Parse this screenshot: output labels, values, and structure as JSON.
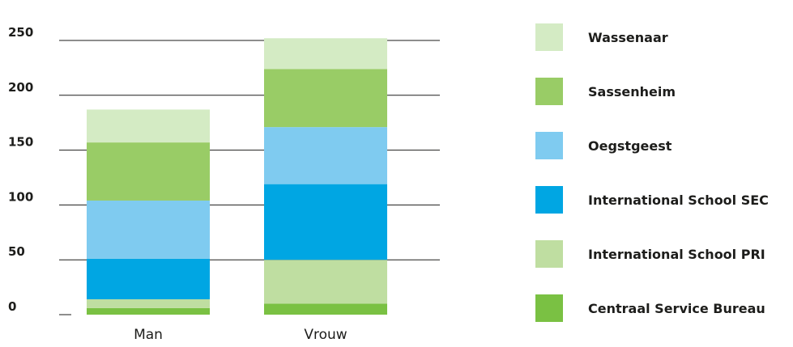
{
  "chart_data": {
    "type": "bar",
    "stacked": true,
    "categories": [
      "Man",
      "Vrouw"
    ],
    "ylim": [
      0,
      250
    ],
    "yticks": [
      "0",
      "50",
      "100",
      "150",
      "200",
      "250"
    ],
    "grid": true,
    "legend_position": "right",
    "series": [
      {
        "name": "Centraal Service Bureau",
        "color": "#7ac143",
        "values": [
          6,
          10
        ]
      },
      {
        "name": "International School PRI",
        "color": "#bfdea1",
        "values": [
          8,
          40
        ]
      },
      {
        "name": "International School SEC",
        "color": "#00a6e3",
        "values": [
          37,
          69
        ]
      },
      {
        "name": "Oegstgeest",
        "color": "#7fcbf0",
        "values": [
          53,
          52
        ]
      },
      {
        "name": "Sassenheim",
        "color": "#99cc66",
        "values": [
          53,
          53
        ]
      },
      {
        "name": "Wassenaar",
        "color": "#d4ebc4",
        "values": [
          30,
          28
        ]
      }
    ]
  }
}
